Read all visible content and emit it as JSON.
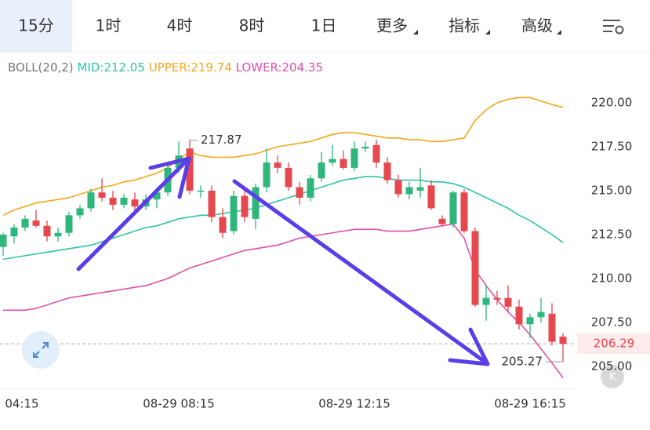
{
  "tabs": [
    "15分",
    "1时",
    "4时",
    "8时",
    "1日",
    "更多",
    "指标",
    "高级"
  ],
  "chart_data": {
    "type": "candlestick",
    "indicator": "BOLL(20,2)",
    "categories": [
      "04:15",
      null,
      null,
      null,
      null,
      null,
      null,
      null,
      null,
      null,
      null,
      null,
      null,
      null,
      null,
      null,
      "08-29 08:15",
      null,
      null,
      null,
      null,
      null,
      null,
      null,
      null,
      null,
      null,
      null,
      null,
      null,
      null,
      null,
      "08-29 12:15",
      null,
      null,
      null,
      null,
      null,
      null,
      null,
      null,
      null,
      null,
      null,
      null,
      null,
      null,
      null,
      "08-29 16:15",
      null,
      null,
      null
    ],
    "open": [
      211.8,
      212.4,
      212.9,
      213.3,
      213.0,
      212.4,
      212.6,
      213.6,
      214.0,
      214.9,
      214.6,
      214.2,
      214.5,
      214.1,
      214.5,
      214.9,
      216.3,
      217.4,
      215.0,
      215.0,
      213.5,
      212.7,
      214.7,
      213.4,
      215.2,
      216.6,
      216.3,
      215.2,
      214.6,
      215.7,
      216.6,
      216.8,
      216.3,
      217.4,
      217.6,
      216.6,
      215.6,
      214.8,
      215.0,
      215.3,
      213.4,
      213.1,
      214.9,
      212.7,
      208.5,
      208.9,
      208.9,
      208.4,
      207.4,
      207.8,
      208.0,
      206.7
    ],
    "high": [
      212.6,
      213.1,
      213.6,
      213.9,
      213.3,
      212.9,
      213.8,
      214.2,
      215.1,
      215.7,
      215.0,
      214.8,
      214.9,
      214.8,
      215.2,
      216.6,
      217.8,
      217.87,
      215.3,
      215.3,
      214.0,
      215.0,
      215.1,
      215.4,
      217.4,
      217.0,
      216.6,
      215.5,
      215.9,
      217.2,
      217.6,
      217.3,
      217.8,
      217.8,
      217.9,
      216.9,
      215.9,
      215.5,
      216.3,
      215.6,
      213.6,
      215.0,
      215.1,
      212.9,
      209.6,
      209.3,
      209.6,
      208.8,
      208.0,
      208.9,
      208.6,
      206.9
    ],
    "low": [
      211.3,
      212.0,
      212.7,
      212.9,
      212.1,
      212.1,
      212.4,
      213.4,
      213.8,
      214.4,
      213.9,
      214.0,
      213.8,
      213.9,
      214.0,
      214.7,
      216.0,
      214.8,
      214.6,
      213.2,
      212.3,
      212.5,
      213.2,
      212.8,
      214.9,
      216.0,
      215.0,
      214.2,
      214.4,
      215.5,
      216.4,
      216.2,
      216.1,
      217.2,
      216.3,
      215.4,
      214.6,
      214.5,
      214.6,
      213.9,
      213.0,
      212.9,
      212.6,
      208.4,
      207.6,
      208.5,
      208.1,
      207.1,
      206.6,
      207.5,
      206.2,
      205.27
    ],
    "close": [
      212.5,
      212.9,
      213.4,
      213.0,
      212.4,
      212.6,
      213.6,
      214.0,
      214.9,
      214.6,
      214.2,
      214.6,
      214.1,
      214.5,
      214.9,
      216.3,
      217.0,
      215.0,
      215.0,
      213.5,
      212.6,
      214.7,
      213.5,
      215.2,
      216.6,
      216.3,
      215.2,
      214.6,
      215.7,
      216.6,
      216.8,
      216.3,
      217.4,
      217.5,
      216.6,
      215.6,
      214.8,
      215.2,
      215.2,
      214.0,
      213.1,
      214.9,
      212.7,
      208.5,
      208.9,
      208.8,
      208.4,
      207.4,
      207.8,
      208.1,
      206.4,
      206.29
    ],
    "up_color": "#2fb67c",
    "down_color": "#e5484f",
    "series": [
      {
        "name": "MID:212.05",
        "color": "#2ec4a4",
        "values": [
          211.1,
          211.2,
          211.3,
          211.4,
          211.5,
          211.6,
          211.7,
          211.8,
          211.9,
          212.1,
          212.3,
          212.5,
          212.7,
          212.9,
          213.0,
          213.2,
          213.4,
          213.5,
          213.6,
          213.6,
          213.7,
          213.8,
          213.9,
          214.0,
          214.2,
          214.4,
          214.6,
          214.8,
          215.0,
          215.2,
          215.4,
          215.6,
          215.7,
          215.8,
          215.8,
          215.7,
          215.6,
          215.6,
          215.6,
          215.5,
          215.5,
          215.4,
          215.2,
          214.9,
          214.6,
          214.3,
          214.0,
          213.6,
          213.3,
          212.9,
          212.5,
          212.05
        ]
      },
      {
        "name": "UPPER:219.74",
        "color": "#f0a818",
        "values": [
          213.6,
          213.9,
          214.1,
          214.3,
          214.4,
          214.5,
          214.6,
          214.8,
          215.0,
          215.2,
          215.3,
          215.5,
          215.6,
          215.8,
          216.0,
          216.3,
          216.8,
          217.2,
          217.0,
          216.9,
          216.9,
          216.9,
          217.0,
          217.1,
          217.3,
          217.5,
          217.6,
          217.7,
          217.8,
          218.0,
          218.2,
          218.3,
          218.3,
          218.2,
          218.1,
          218.0,
          218.0,
          217.9,
          217.9,
          217.8,
          217.8,
          217.9,
          218.0,
          219.0,
          219.6,
          220.0,
          220.2,
          220.3,
          220.3,
          220.1,
          219.9,
          219.74
        ]
      },
      {
        "name": "LOWER:204.35",
        "color": "#e04fa8",
        "values": [
          208.2,
          208.2,
          208.2,
          208.3,
          208.5,
          208.7,
          208.9,
          209.0,
          209.1,
          209.2,
          209.3,
          209.4,
          209.5,
          209.6,
          209.8,
          210.0,
          210.3,
          210.6,
          210.8,
          211.0,
          211.2,
          211.4,
          211.6,
          211.7,
          211.8,
          211.9,
          212.1,
          212.3,
          212.4,
          212.5,
          212.6,
          212.7,
          212.8,
          212.8,
          212.8,
          212.7,
          212.7,
          212.7,
          212.8,
          212.9,
          213.0,
          213.1,
          212.3,
          210.5,
          209.6,
          208.8,
          208.1,
          207.5,
          206.8,
          206.0,
          205.2,
          204.35
        ]
      }
    ],
    "max_label": 217.87,
    "min_label": 205.27,
    "last_price": 206.29,
    "ylim": [
      203.5,
      222.0
    ],
    "yticks": [
      {
        "value": 205,
        "label": "205.00"
      },
      {
        "value": 207.5,
        "label": "207.50"
      },
      {
        "value": 210,
        "label": "210.00"
      },
      {
        "value": 212.5,
        "label": "212.50"
      },
      {
        "value": 215,
        "label": "215.00"
      },
      {
        "value": 217.5,
        "label": "217.50"
      },
      {
        "value": 220,
        "label": "220.00"
      }
    ],
    "grid": false
  }
}
